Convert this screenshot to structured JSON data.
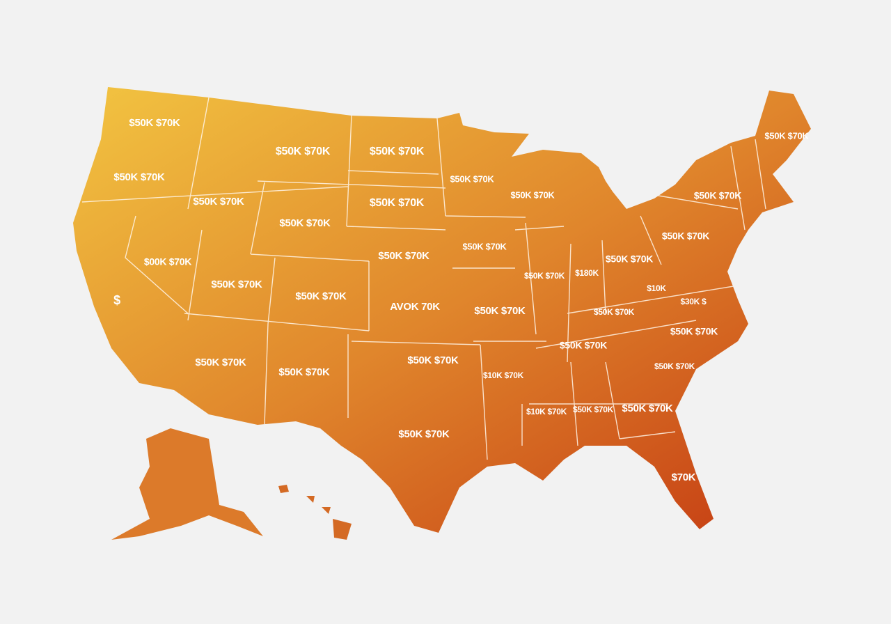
{
  "map": {
    "labels": [
      "$50K $70K",
      "$50K $70K",
      "$50K $70K",
      "$50K $70K",
      "$50K $70K",
      "$50K $70K",
      "$50K $70K",
      "$50K $70K",
      "$50K $70K",
      "$50K $70K",
      "$50K $70K",
      "$50K $70K",
      "$50K $70K",
      "$50K $70K",
      "$00K $70K",
      "$50K $70K",
      "$180K",
      "$50K $70K",
      "$10K",
      "$",
      "$50K $70K",
      "$50K $70K",
      "AVOK 70K",
      "$50K $70K",
      "$50K $70K",
      "$30K $",
      "$50K $70K",
      "$50K $70K",
      "$50K $70K",
      "$50K $70K",
      "$50K $70K",
      "$10K $70K",
      "$50K $70K",
      "$10K $70K",
      "$50K $70K",
      "$50K $70K",
      "$50K $70K",
      "$70K"
    ]
  }
}
